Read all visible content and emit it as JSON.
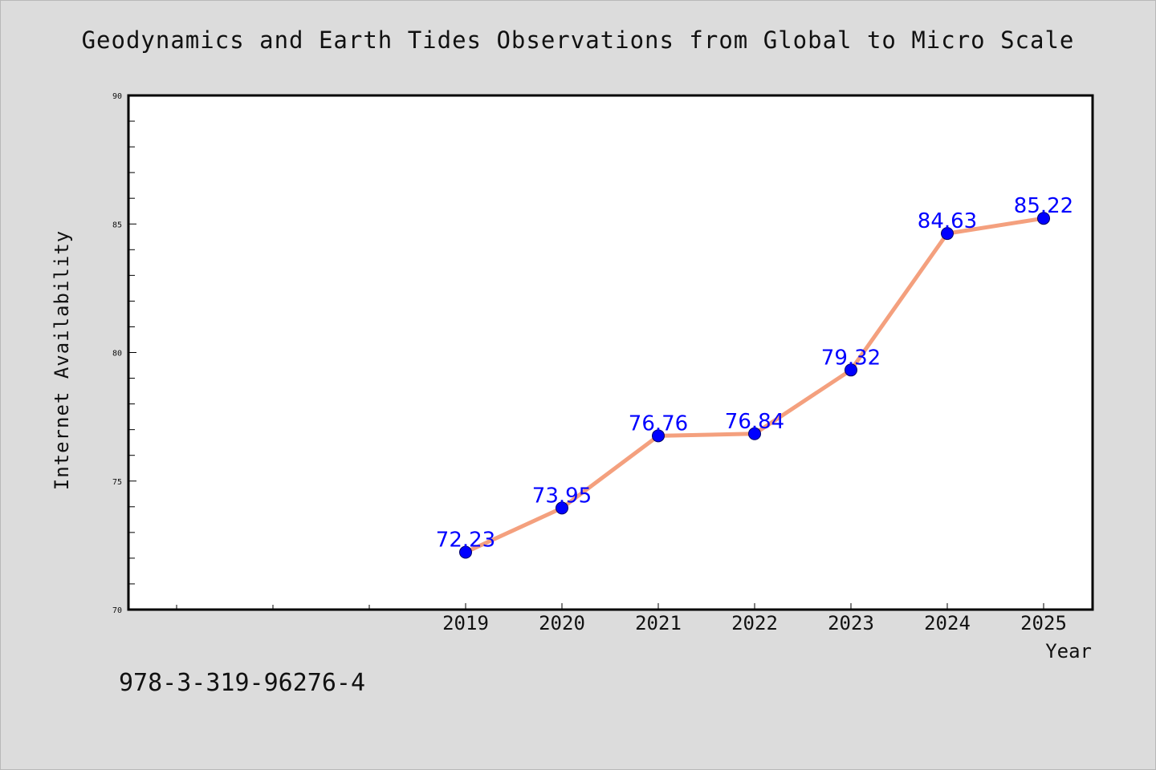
{
  "title": "Geodynamics and Earth Tides Observations from Global to Micro Scale",
  "footer_text": "978-3-319-96276-4",
  "chart_data": {
    "type": "line",
    "title": "Geodynamics and Earth Tides Observations from Global to Micro Scale",
    "xlabel": "Year",
    "ylabel": "Internet Availability",
    "x": [
      "2019",
      "2020",
      "2021",
      "2022",
      "2023",
      "2024",
      "2025"
    ],
    "series": [
      {
        "values": [
          72.23,
          73.95,
          76.76,
          76.84,
          79.32,
          84.63,
          85.22
        ],
        "line_color": "#f4a07e",
        "marker_color": "#0000ff"
      }
    ],
    "data_labels": [
      "72.23",
      "73.95",
      "76.76",
      "76.84",
      "79.32",
      "84.63",
      "85.22"
    ],
    "data_label_color": "#0000ff",
    "ylim": [
      70,
      90
    ],
    "yticks": [
      "70",
      "75",
      "80",
      "85",
      "90"
    ],
    "grid": false,
    "legend": "none"
  }
}
